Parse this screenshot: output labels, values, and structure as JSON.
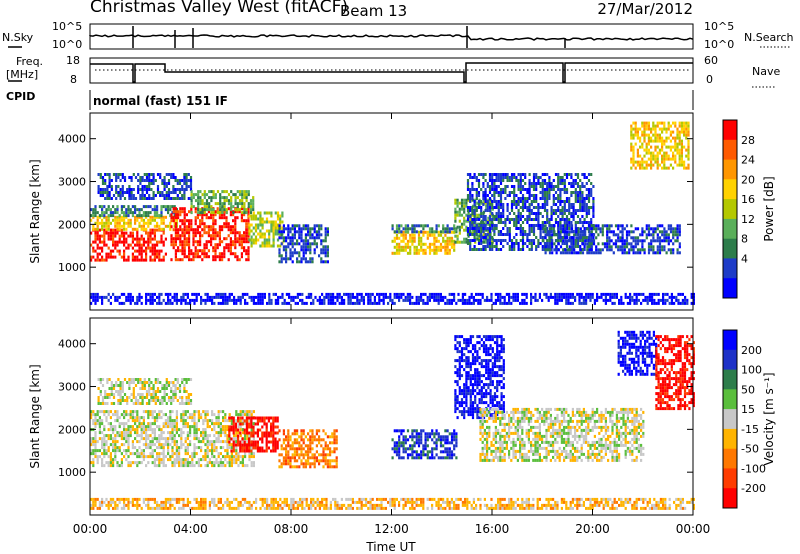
{
  "header": {
    "station": "Christmas Valley West (fitACF)",
    "beam": "Beam 13",
    "date": "27/Mar/2012"
  },
  "strip": {
    "nsky_label": "N.Sky",
    "nsky_ticks": [
      "10^5",
      "10^0"
    ],
    "nsearch_label": "N.Search",
    "nsearch_ticks": [
      "10^5",
      "10^0"
    ],
    "freq_label": "Freq.",
    "freq_unit": "[MHz]",
    "freq_ticks": [
      "18",
      "8"
    ],
    "nave_label": "Nave",
    "nave_ticks": [
      "60",
      "0"
    ],
    "cpid_label": "CPID",
    "cpid_value": "normal (fast) 151 IF"
  },
  "chart_data": [
    {
      "type": "heatmap",
      "name": "power-panel",
      "ylabel": "Slant Range [km]",
      "yticks": [
        1000,
        2000,
        3000,
        4000
      ],
      "ylim": [
        0,
        4600
      ],
      "xlim": [
        0,
        24
      ],
      "colorbar": {
        "label": "Power [dB]",
        "ticks": [
          "28",
          "24",
          "20",
          "16",
          "12",
          "8",
          "4"
        ],
        "colors": [
          "#ff0000",
          "#ff5a00",
          "#ff9600",
          "#ffd200",
          "#b4c800",
          "#5aaf5a",
          "#2d7d4b",
          "#1e3cc8",
          "#0000ff"
        ]
      },
      "echo_regions": [
        {
          "t0": 0.0,
          "t1": 3.0,
          "r0": 1150,
          "r1": 1900,
          "level": 0
        },
        {
          "t0": 0.0,
          "t1": 3.5,
          "r0": 1900,
          "r1": 2200,
          "level": 3
        },
        {
          "t0": 0.0,
          "t1": 3.5,
          "r0": 2200,
          "r1": 2450,
          "level": 6
        },
        {
          "t0": 0.3,
          "t1": 4.0,
          "r0": 2600,
          "r1": 3200,
          "level": 7
        },
        {
          "t0": 3.2,
          "t1": 6.3,
          "r0": 1150,
          "r1": 2400,
          "level": 0
        },
        {
          "t0": 4.0,
          "t1": 6.5,
          "r0": 2300,
          "r1": 2800,
          "level": 5
        },
        {
          "t0": 6.3,
          "t1": 7.7,
          "r0": 1500,
          "r1": 2300,
          "level": 4
        },
        {
          "t0": 7.5,
          "t1": 9.5,
          "r0": 1100,
          "r1": 2000,
          "level": 7
        },
        {
          "t0": 12.0,
          "t1": 14.5,
          "r0": 1350,
          "r1": 1850,
          "level": 3
        },
        {
          "t0": 12.0,
          "t1": 14.6,
          "r0": 1800,
          "r1": 2000,
          "level": 6
        },
        {
          "t0": 14.5,
          "t1": 16.0,
          "r0": 1600,
          "r1": 2600,
          "level": 5
        },
        {
          "t0": 15.0,
          "t1": 20.0,
          "r0": 1400,
          "r1": 3200,
          "level": 7
        },
        {
          "t0": 18.0,
          "t1": 23.5,
          "r0": 1300,
          "r1": 2000,
          "level": 7
        },
        {
          "t0": 21.5,
          "t1": 23.8,
          "r0": 3300,
          "r1": 4400,
          "level": 3
        },
        {
          "t0": 0.0,
          "t1": 24.0,
          "r0": 150,
          "r1": 400,
          "level": 8
        }
      ]
    },
    {
      "type": "heatmap",
      "name": "velocity-panel",
      "ylabel": "Slant Range [km]",
      "yticks": [
        1000,
        2000,
        3000,
        4000
      ],
      "ylim": [
        0,
        4600
      ],
      "xlim": [
        0,
        24
      ],
      "xlabel": "Time UT",
      "xticks": [
        "00:00",
        "04:00",
        "08:00",
        "12:00",
        "16:00",
        "20:00",
        "00:00"
      ],
      "colorbar": {
        "label": "Velocity [m s⁻¹]",
        "ticks": [
          "200",
          "100",
          "50",
          "15",
          "-15",
          "-50",
          "-100",
          "-200"
        ],
        "colors": [
          "#0000ff",
          "#1e32c8",
          "#2d7d4b",
          "#5abe3c",
          "#c8c8c8",
          "#ffb400",
          "#ff7800",
          "#ff3c00",
          "#ff0000"
        ]
      },
      "echo_regions": [
        {
          "t0": 0.0,
          "t1": 6.5,
          "r0": 1150,
          "r1": 2450,
          "level": 4
        },
        {
          "t0": 0.3,
          "t1": 4.0,
          "r0": 2600,
          "r1": 3200,
          "level": 4
        },
        {
          "t0": 5.5,
          "t1": 7.5,
          "r0": 1500,
          "r1": 2300,
          "level": 8
        },
        {
          "t0": 7.5,
          "t1": 9.8,
          "r0": 1100,
          "r1": 2000,
          "level": 6
        },
        {
          "t0": 12.0,
          "t1": 14.6,
          "r0": 1350,
          "r1": 2000,
          "level": 1
        },
        {
          "t0": 14.5,
          "t1": 16.5,
          "r0": 2300,
          "r1": 4200,
          "level": 0
        },
        {
          "t0": 15.5,
          "t1": 22.0,
          "r0": 1300,
          "r1": 2500,
          "level": 4
        },
        {
          "t0": 21.0,
          "t1": 22.5,
          "r0": 3300,
          "r1": 4300,
          "level": 0
        },
        {
          "t0": 22.5,
          "t1": 24.0,
          "r0": 2500,
          "r1": 4200,
          "level": 8
        },
        {
          "t0": 0.0,
          "t1": 24.0,
          "r0": 150,
          "r1": 400,
          "level": 5
        }
      ]
    }
  ]
}
